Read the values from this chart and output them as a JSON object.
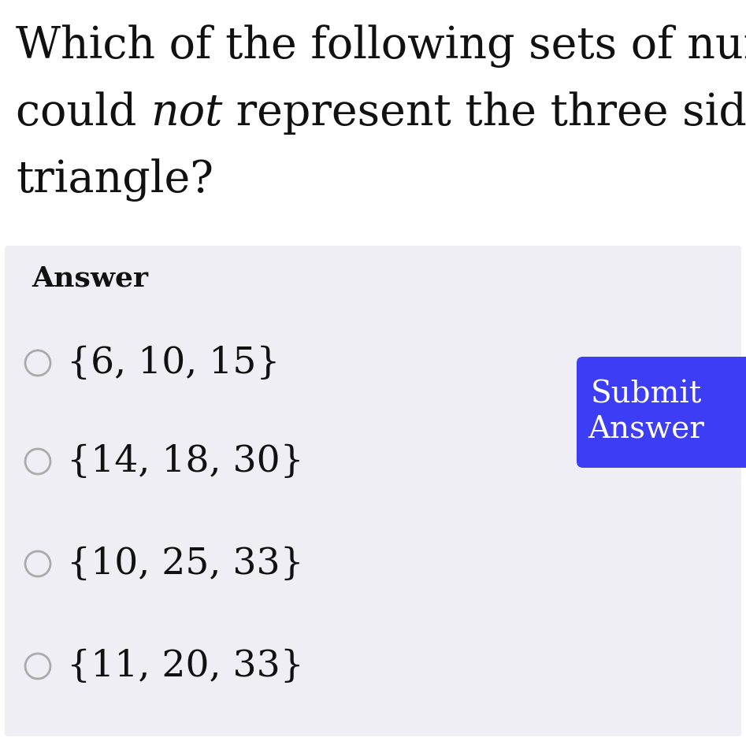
{
  "question_line1": "Which of the following sets of numbers",
  "question_line2_pre": "could ",
  "question_line2_italic": "not",
  "question_line2_post": " represent the three sides of a",
  "question_line3": "triangle?",
  "answer_label": "Answer",
  "options": [
    "{6, 10, 15}",
    "{14, 18, 30}",
    "{10, 25, 33}",
    "{11, 20, 33}"
  ],
  "button_text_line1": "Submit",
  "button_text_line2": "Answer",
  "bg_color": "#ffffff",
  "answer_box_color": "#eeeef4",
  "button_color": "#3d3df5",
  "button_text_color": "#ffffff",
  "question_color": "#111111",
  "answer_label_color": "#111111",
  "option_color": "#111111",
  "circle_color": "#aaaaaa",
  "question_fontsize": 40,
  "answer_label_fontsize": 26,
  "option_fontsize": 34,
  "button_fontsize": 28,
  "fig_width": 9.47,
  "fig_height": 9.41,
  "dpi": 100
}
